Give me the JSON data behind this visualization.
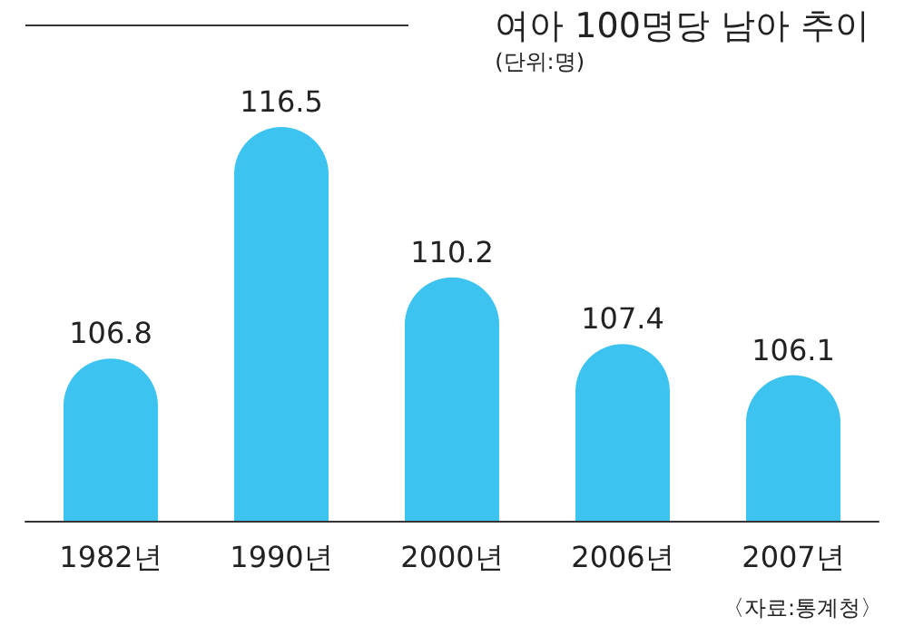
{
  "chart_data": {
    "type": "bar",
    "title": "여아 100명당 남아 추이",
    "subtitle": "(단위:명)",
    "annotations": [
      "〈자료:통계청〉"
    ],
    "categories": [
      "1982년",
      "1990년",
      "2000년",
      "2006년",
      "2007년"
    ],
    "values": [
      106.8,
      116.5,
      110.2,
      107.4,
      106.1
    ],
    "color": "#3dc3ef",
    "ylim": [
      100,
      116.5
    ],
    "data_labels": true
  }
}
